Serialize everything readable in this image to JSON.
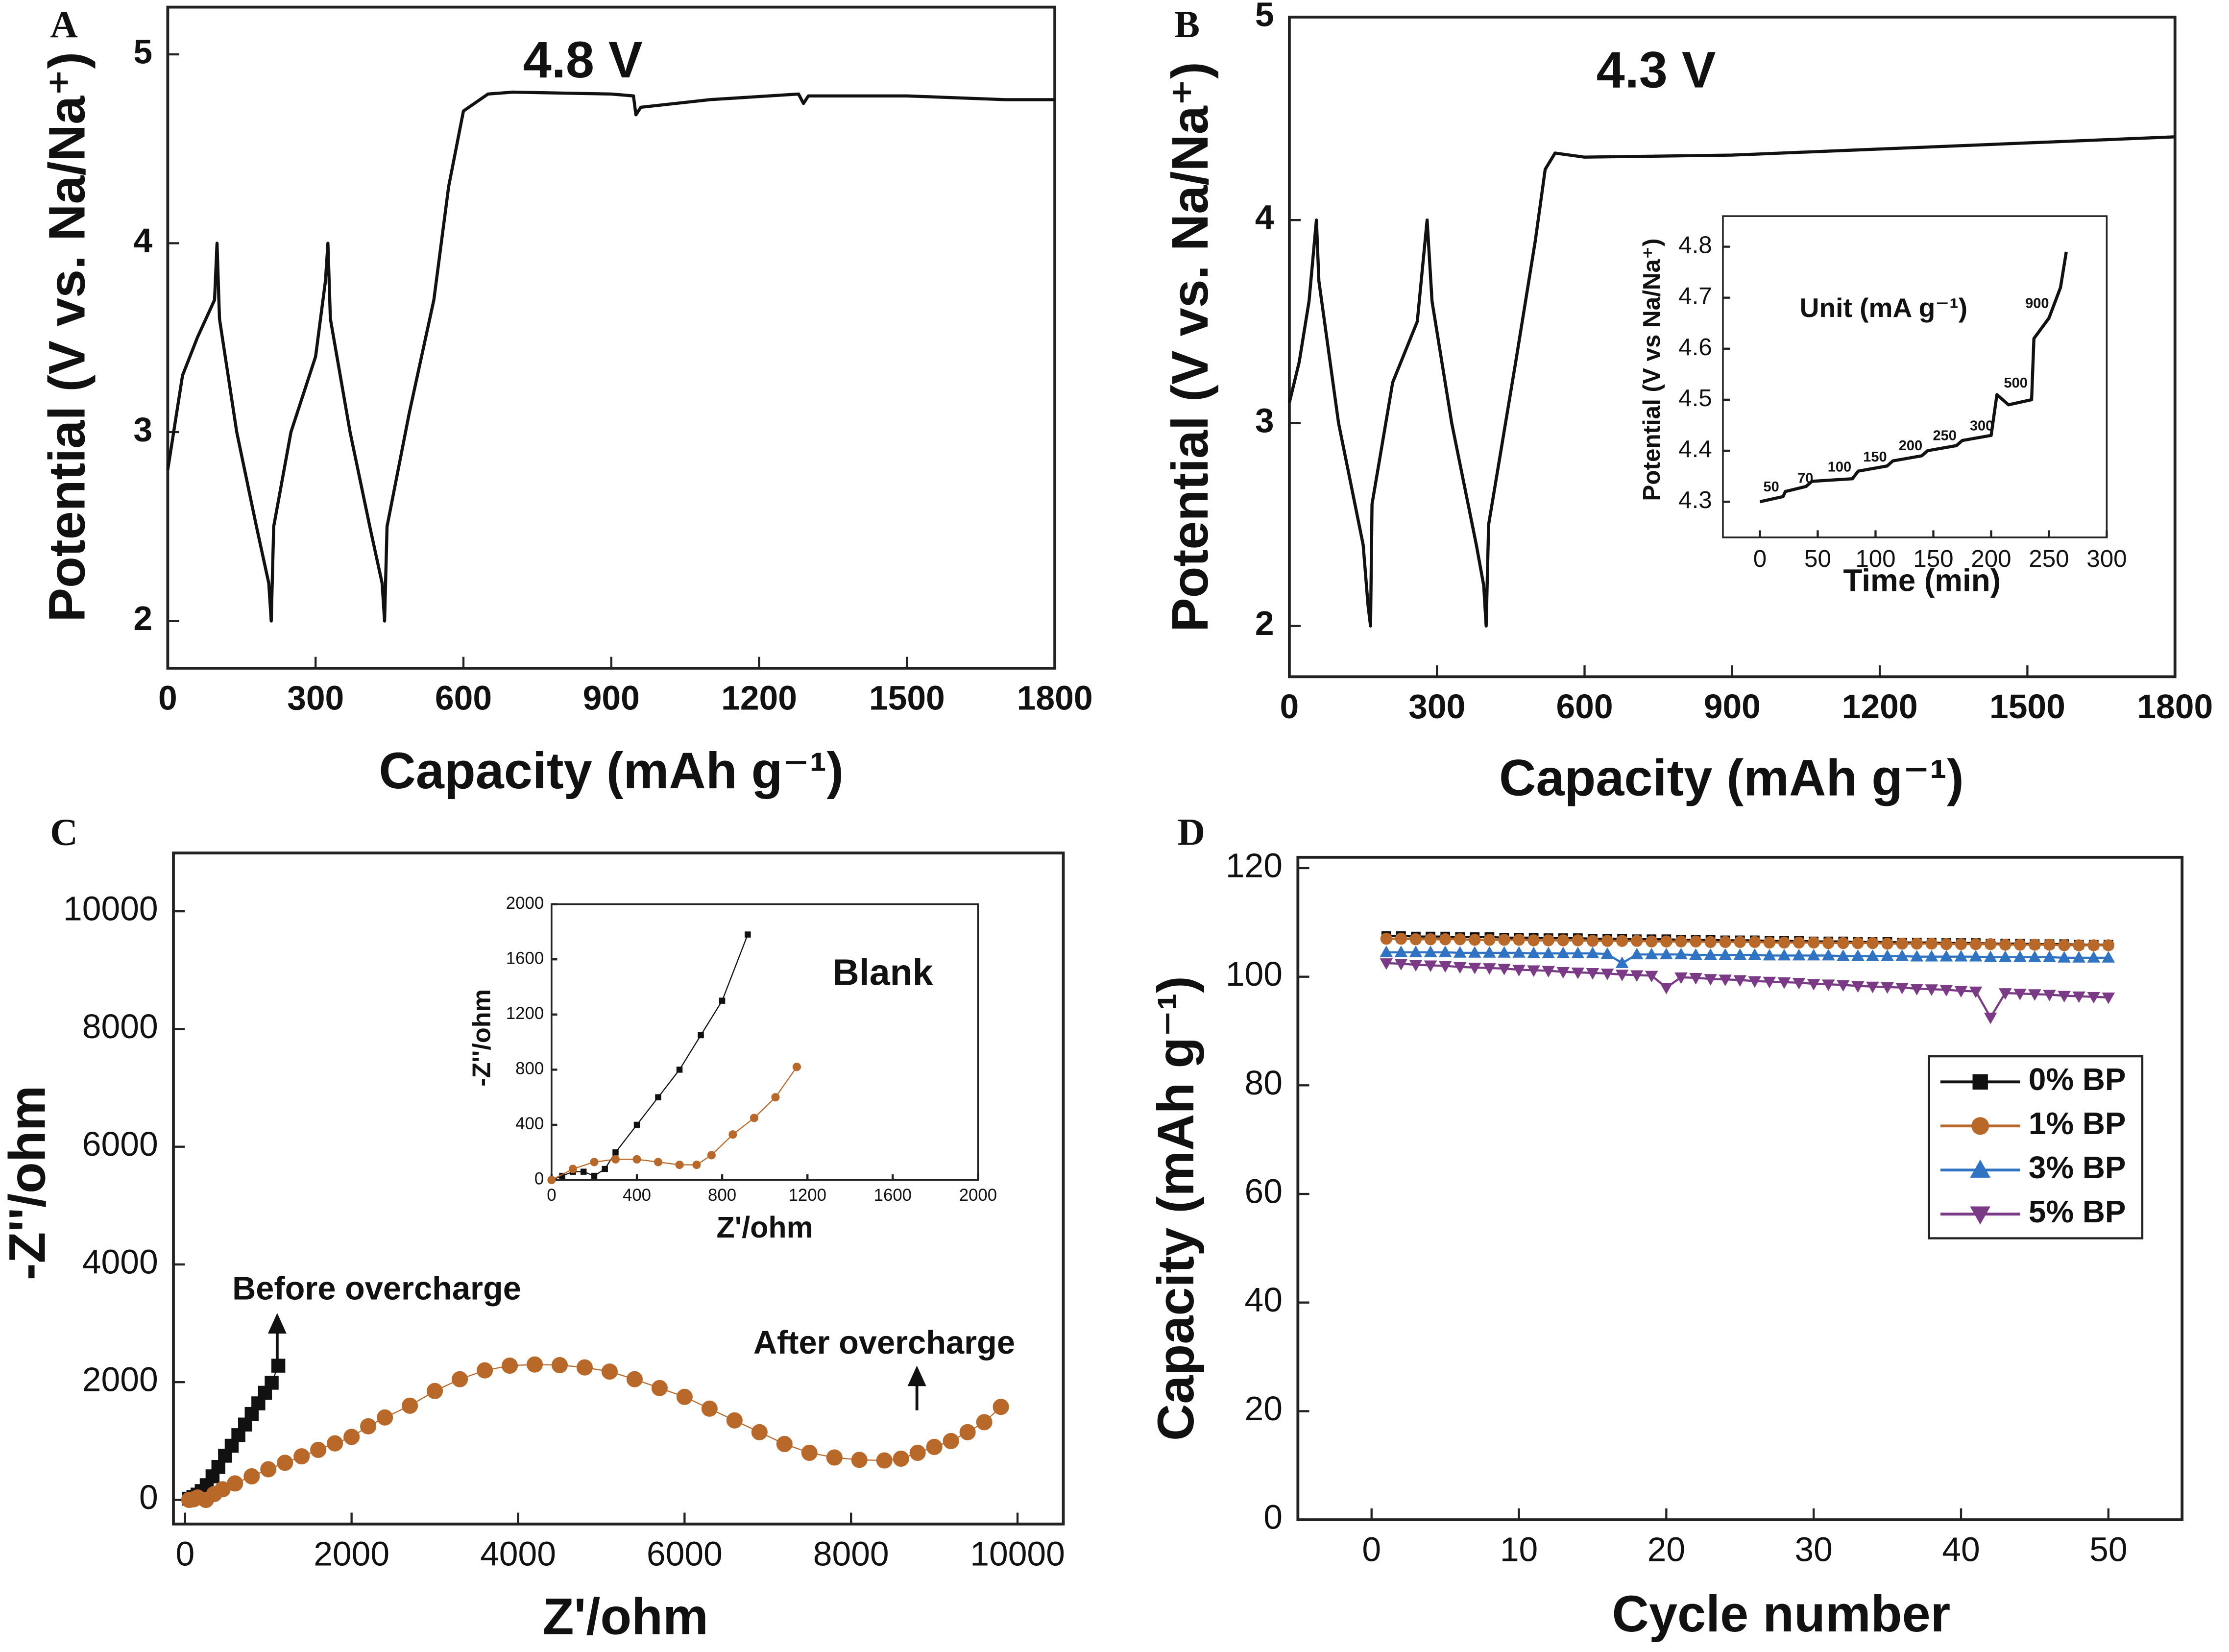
{
  "chart_data": [
    {
      "type": "line",
      "panel": "A",
      "xlabel": "Capacity (mAh g⁻¹)",
      "ylabel": "Potential (V vs. Na/Na⁺)",
      "xlim": [
        0,
        1800
      ],
      "ylim": [
        1.75,
        5.25
      ],
      "xticks": [
        0,
        300,
        600,
        900,
        1200,
        1500,
        1800
      ],
      "yticks": [
        2,
        3,
        4,
        5
      ],
      "annotations": [
        "4.8 V"
      ],
      "series": [
        {
          "color": "#111111",
          "marker": "none",
          "x": [
            0,
            30,
            60,
            95,
            100,
            105,
            140,
            180,
            205,
            210,
            215,
            250,
            300,
            320,
            325,
            330,
            370,
            410,
            435,
            440,
            445,
            490,
            540,
            570,
            600,
            650,
            700,
            900,
            945,
            950,
            960,
            1100,
            1280,
            1290,
            1300,
            1500,
            1700,
            1800
          ],
          "values": [
            2.8,
            3.3,
            3.5,
            3.7,
            4.0,
            3.6,
            3.0,
            2.5,
            2.2,
            2.0,
            2.5,
            3.0,
            3.4,
            3.8,
            4.0,
            3.6,
            3.0,
            2.5,
            2.2,
            2.0,
            2.5,
            3.1,
            3.7,
            4.3,
            4.7,
            4.79,
            4.8,
            4.79,
            4.78,
            4.68,
            4.72,
            4.76,
            4.79,
            4.74,
            4.78,
            4.78,
            4.76,
            4.76
          ]
        }
      ]
    },
    {
      "type": "line",
      "panel": "B",
      "xlabel": "Capacity (mAh g⁻¹)",
      "ylabel": "Potential (V vs. Na/Na⁺)",
      "xlim": [
        0,
        1800
      ],
      "ylim": [
        1.75,
        5
      ],
      "xticks": [
        0,
        300,
        600,
        900,
        1200,
        1500,
        1800
      ],
      "yticks": [
        2,
        3,
        4,
        5
      ],
      "annotations": [
        "4.3 V"
      ],
      "series": [
        {
          "color": "#111111",
          "marker": "none",
          "x": [
            0,
            20,
            40,
            55,
            60,
            100,
            150,
            160,
            165,
            168,
            210,
            260,
            280,
            290,
            330,
            380,
            395,
            400,
            405,
            460,
            500,
            520,
            540,
            600,
            900,
            1200,
            1500,
            1800
          ],
          "values": [
            3.1,
            3.3,
            3.6,
            4.0,
            3.7,
            3.0,
            2.4,
            2.1,
            2.0,
            2.6,
            3.2,
            3.5,
            4.0,
            3.6,
            3.0,
            2.4,
            2.2,
            2.0,
            2.5,
            3.3,
            3.9,
            4.25,
            4.33,
            4.31,
            4.32,
            4.35,
            4.38,
            4.41
          ]
        }
      ],
      "inset": {
        "type": "line",
        "xlabel": "Time (min)",
        "ylabel": "Potential (V vs Na/Na⁺)",
        "xlim": [
          -32,
          300
        ],
        "ylim": [
          4.23,
          4.86
        ],
        "xticks": [
          0,
          50,
          100,
          150,
          200,
          250,
          300
        ],
        "yticks": [
          4.3,
          4.4,
          4.5,
          4.6,
          4.7,
          4.8
        ],
        "annotations": [
          "Unit (mA g⁻¹)",
          "50",
          "70",
          "100",
          "150",
          "200",
          "250",
          "300",
          "500",
          "900"
        ],
        "series": [
          {
            "color": "#111111",
            "marker": "none",
            "x": [
              0,
              20,
              22,
              40,
              45,
              80,
              85,
              110,
              115,
              140,
              145,
              170,
              175,
              200,
              205,
              215,
              235,
              237,
              250,
              260,
              265
            ],
            "values": [
              4.3,
              4.31,
              4.32,
              4.33,
              4.34,
              4.345,
              4.36,
              4.37,
              4.38,
              4.39,
              4.4,
              4.41,
              4.42,
              4.43,
              4.51,
              4.49,
              4.5,
              4.62,
              4.66,
              4.72,
              4.79
            ]
          }
        ]
      }
    },
    {
      "type": "scatter",
      "panel": "C",
      "xlabel": "Z'/ohm",
      "ylabel": "-Z''/ohm",
      "xlim": [
        -140,
        10550
      ],
      "ylim": [
        -410,
        10990
      ],
      "xticks": [
        0,
        2000,
        4000,
        6000,
        8000,
        10000
      ],
      "yticks": [
        0,
        2000,
        4000,
        6000,
        8000,
        10000
      ],
      "annotations": [
        "Before overcharge",
        "After overcharge"
      ],
      "series": [
        {
          "color": "#111111",
          "marker": "square",
          "x": [
            50,
            100,
            150,
            200,
            260,
            330,
            400,
            480,
            560,
            640,
            720,
            800,
            880,
            960,
            1040,
            1120
          ],
          "values": [
            20,
            50,
            90,
            150,
            250,
            400,
            560,
            750,
            920,
            1100,
            1280,
            1460,
            1640,
            1820,
            1990,
            2280
          ]
        },
        {
          "color": "#b8692a",
          "marker": "circle",
          "x": [
            50,
            100,
            150,
            250,
            350,
            450,
            600,
            800,
            1000,
            1200,
            1400,
            1600,
            1800,
            2000,
            2200,
            2400,
            2700,
            3000,
            3300,
            3600,
            3900,
            4200,
            4500,
            4800,
            5100,
            5400,
            5700,
            6000,
            6300,
            6600,
            6900,
            7200,
            7500,
            7800,
            8100,
            8400,
            8600,
            8800,
            9000,
            9200,
            9400,
            9600,
            9800
          ],
          "values": [
            0,
            10,
            40,
            0,
            100,
            180,
            280,
            400,
            520,
            630,
            740,
            850,
            960,
            1070,
            1250,
            1400,
            1600,
            1850,
            2050,
            2200,
            2280,
            2300,
            2290,
            2250,
            2180,
            2050,
            1900,
            1750,
            1550,
            1350,
            1150,
            950,
            800,
            720,
            680,
            670,
            700,
            800,
            900,
            1000,
            1150,
            1320,
            1580
          ]
        }
      ],
      "inset": {
        "type": "scatter",
        "xlabel": "Z'/ohm",
        "ylabel": "-Z''/ohm",
        "xlim": [
          0,
          2000
        ],
        "ylim": [
          0,
          2000
        ],
        "xticks": [
          0,
          400,
          800,
          1200,
          1600,
          2000
        ],
        "yticks": [
          0,
          400,
          800,
          1200,
          1600,
          2000
        ],
        "annotations": [
          "Blank"
        ],
        "series": [
          {
            "color": "#111111",
            "marker": "square",
            "x": [
              0,
              50,
              100,
              150,
              200,
              250,
              300,
              400,
              500,
              600,
              700,
              800,
              920
            ],
            "values": [
              0,
              30,
              60,
              60,
              30,
              80,
              200,
              400,
              600,
              800,
              1050,
              1300,
              1780
            ]
          },
          {
            "color": "#b8692a",
            "marker": "circle",
            "x": [
              0,
              100,
              200,
              300,
              400,
              500,
              600,
              680,
              750,
              850,
              950,
              1050,
              1150
            ],
            "values": [
              0,
              80,
              130,
              150,
              150,
              130,
              110,
              110,
              180,
              330,
              450,
              600,
              820
            ]
          }
        ]
      }
    },
    {
      "type": "line",
      "panel": "D",
      "xlabel": "Cycle number",
      "ylabel": "Capacity (mAh g⁻¹)",
      "xlim": [
        -5,
        55
      ],
      "ylim": [
        0,
        122
      ],
      "xticks": [
        0,
        10,
        20,
        30,
        40,
        50
      ],
      "yticks": [
        0,
        20,
        40,
        60,
        80,
        100,
        120
      ],
      "legend": "right",
      "x": [
        1,
        2,
        3,
        4,
        5,
        6,
        7,
        8,
        9,
        10,
        11,
        12,
        13,
        14,
        15,
        16,
        17,
        18,
        19,
        20,
        21,
        22,
        23,
        24,
        25,
        26,
        27,
        28,
        29,
        30,
        31,
        32,
        33,
        34,
        35,
        36,
        37,
        38,
        39,
        40,
        41,
        42,
        43,
        44,
        45,
        46,
        47,
        48,
        49,
        50
      ],
      "series": [
        {
          "name": "0% BP",
          "color": "#111111",
          "marker": "square",
          "values": [
            107.5,
            107.5,
            107.4,
            107.4,
            107.4,
            107.3,
            107.3,
            107.3,
            107.2,
            107.2,
            107.2,
            107.1,
            107.1,
            107.1,
            107.0,
            107.0,
            107.0,
            106.9,
            106.9,
            106.9,
            106.8,
            106.8,
            106.8,
            106.7,
            106.7,
            106.7,
            106.6,
            106.6,
            106.6,
            106.5,
            106.5,
            106.5,
            106.4,
            106.4,
            106.4,
            106.3,
            106.3,
            106.3,
            106.2,
            106.2,
            106.2,
            106.1,
            106.1,
            106.1,
            106.0,
            106.0,
            106.0,
            105.9,
            105.9,
            105.9
          ]
        },
        {
          "name": "1% BP",
          "color": "#b8692a",
          "marker": "circle",
          "values": [
            107.0,
            107.0,
            106.9,
            106.9,
            106.9,
            106.9,
            106.8,
            106.8,
            106.8,
            106.8,
            106.7,
            106.7,
            106.7,
            106.7,
            106.6,
            106.6,
            106.6,
            106.6,
            106.5,
            106.5,
            106.5,
            106.5,
            106.4,
            106.4,
            106.4,
            106.4,
            106.3,
            106.3,
            106.3,
            106.3,
            106.2,
            106.2,
            106.2,
            106.2,
            106.1,
            106.1,
            106.1,
            106.1,
            106.0,
            106.0,
            106.0,
            106.0,
            105.9,
            105.9,
            105.9,
            105.9,
            105.8,
            105.8,
            105.8,
            105.8
          ]
        },
        {
          "name": "3% BP",
          "color": "#2f73c2",
          "marker": "triangle",
          "values": [
            104.5,
            104.5,
            104.5,
            104.5,
            104.5,
            104.4,
            104.4,
            104.4,
            104.4,
            104.4,
            104.3,
            104.3,
            104.3,
            104.3,
            104.3,
            104.2,
            102.5,
            104.1,
            104.1,
            104.1,
            104.1,
            104.0,
            104.0,
            104.0,
            104.0,
            104.0,
            103.9,
            103.9,
            103.9,
            103.9,
            103.9,
            103.8,
            103.8,
            103.8,
            103.8,
            103.8,
            103.7,
            103.7,
            103.7,
            103.7,
            103.7,
            103.6,
            103.6,
            103.6,
            103.6,
            103.6,
            103.5,
            103.5,
            103.5,
            103.5
          ]
        },
        {
          "name": "5% BP",
          "color": "#7a3a86",
          "marker": "triangle-down",
          "values": [
            102.5,
            102.4,
            102.2,
            102.1,
            102.0,
            101.8,
            101.7,
            101.6,
            101.5,
            101.3,
            101.2,
            101.1,
            100.9,
            100.8,
            100.7,
            100.6,
            100.4,
            100.3,
            100.2,
            98.0,
            99.9,
            99.8,
            99.6,
            99.5,
            99.4,
            99.2,
            99.1,
            99.0,
            98.9,
            98.7,
            98.6,
            98.5,
            98.3,
            98.2,
            98.1,
            98.0,
            97.8,
            97.7,
            97.6,
            97.4,
            97.3,
            92.5,
            97.0,
            96.9,
            96.8,
            96.7,
            96.5,
            96.4,
            96.3,
            96.2
          ]
        }
      ]
    }
  ]
}
